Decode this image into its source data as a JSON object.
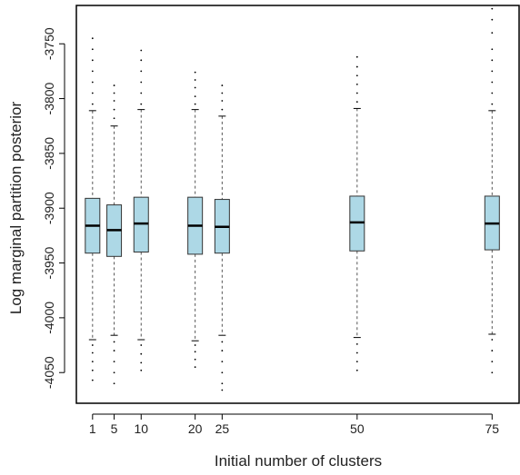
{
  "chart_data": {
    "type": "boxplot",
    "title": "",
    "xlabel": "Initial number of clusters",
    "ylabel": "Log marginal partition posterior",
    "x_ticks": [
      1,
      5,
      10,
      20,
      25,
      50,
      75
    ],
    "y_ticks": [
      -3750,
      -3800,
      -3850,
      -3900,
      -3950,
      -4000,
      -4050
    ],
    "xlim": [
      -2,
      80
    ],
    "ylim": [
      -4078,
      -3715
    ],
    "box_color": "#add8e6",
    "grid": false,
    "boxes": [
      {
        "x": 1,
        "lower_whisker": -4020,
        "q1": -3941,
        "median": -3916,
        "q3": -3891,
        "upper_whisker": -3811,
        "outliers_high": [
          -3805,
          -3795,
          -3785,
          -3775,
          -3765,
          -3755,
          -3745
        ],
        "outliers_low": [
          -4025,
          -4032,
          -4040,
          -4048,
          -4057
        ]
      },
      {
        "x": 5,
        "lower_whisker": -4016,
        "q1": -3944,
        "median": -3920,
        "q3": -3897,
        "upper_whisker": -3825,
        "outliers_high": [
          -3818,
          -3810,
          -3802,
          -3795,
          -3788
        ],
        "outliers_low": [
          -4022,
          -4030,
          -4040,
          -4050,
          -4060
        ]
      },
      {
        "x": 10,
        "lower_whisker": -4020,
        "q1": -3940,
        "median": -3914,
        "q3": -3890,
        "upper_whisker": -3810,
        "outliers_high": [
          -3805,
          -3795,
          -3785,
          -3775,
          -3765,
          -3756
        ],
        "outliers_low": [
          -4025,
          -4033,
          -4041,
          -4048
        ]
      },
      {
        "x": 20,
        "lower_whisker": -4021,
        "q1": -3942,
        "median": -3916,
        "q3": -3890,
        "upper_whisker": -3810,
        "outliers_high": [
          -3805,
          -3798,
          -3790,
          -3783,
          -3776
        ],
        "outliers_low": [
          -4025,
          -4031,
          -4038,
          -4045
        ]
      },
      {
        "x": 25,
        "lower_whisker": -4016,
        "q1": -3941,
        "median": -3917,
        "q3": -3892,
        "upper_whisker": -3816,
        "outliers_high": [
          -3810,
          -3802,
          -3795,
          -3788
        ],
        "outliers_low": [
          -4022,
          -4030,
          -4040,
          -4050,
          -4060,
          -4066
        ]
      },
      {
        "x": 50,
        "lower_whisker": -4018,
        "q1": -3939,
        "median": -3913,
        "q3": -3889,
        "upper_whisker": -3809,
        "outliers_high": [
          -3803,
          -3795,
          -3787,
          -3779,
          -3771,
          -3762
        ],
        "outliers_low": [
          -4024,
          -4032,
          -4040,
          -4048
        ]
      },
      {
        "x": 75,
        "lower_whisker": -4015,
        "q1": -3938,
        "median": -3914,
        "q3": -3889,
        "upper_whisker": -3811,
        "outliers_high": [
          -3805,
          -3795,
          -3785,
          -3775,
          -3765,
          -3755,
          -3740,
          -3728,
          -3718
        ],
        "outliers_low": [
          -4020,
          -4030,
          -4040,
          -4050
        ]
      }
    ]
  }
}
